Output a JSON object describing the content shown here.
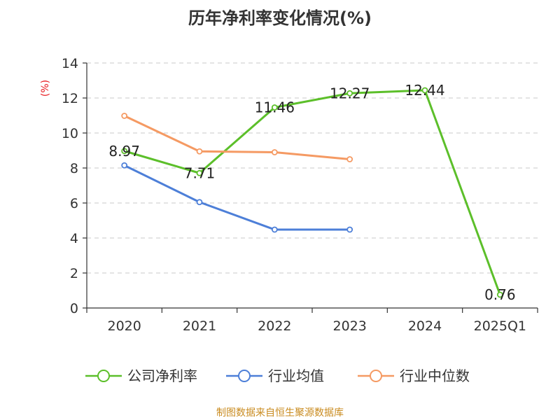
{
  "chart_data": {
    "type": "line",
    "title": "历年净利率变化情况(%)",
    "ylabel": "(%)",
    "xlabel": "",
    "categories": [
      "2020",
      "2021",
      "2022",
      "2023",
      "2024",
      "2025Q1"
    ],
    "y_ticks": [
      "0",
      "2",
      "4",
      "6",
      "8",
      "10",
      "12",
      "14"
    ],
    "ylim": [
      0,
      14
    ],
    "grid": true,
    "legend_position": "bottom",
    "series": [
      {
        "name": "公司净利率",
        "color": "#5cbf2a",
        "values": [
          8.97,
          7.71,
          11.46,
          12.27,
          12.44,
          0.76
        ],
        "labels": [
          "8.97",
          "7.71",
          "11.46",
          "12.27",
          "12.44",
          "0.76"
        ]
      },
      {
        "name": "行业均值",
        "color": "#4d7fd8",
        "values": [
          8.15,
          6.05,
          4.48,
          4.48,
          null,
          null
        ]
      },
      {
        "name": "行业中位数",
        "color": "#f59a63",
        "values": [
          10.98,
          8.95,
          8.9,
          8.5,
          null,
          null
        ]
      }
    ],
    "source": "制图数据来自恒生聚源数据库"
  }
}
